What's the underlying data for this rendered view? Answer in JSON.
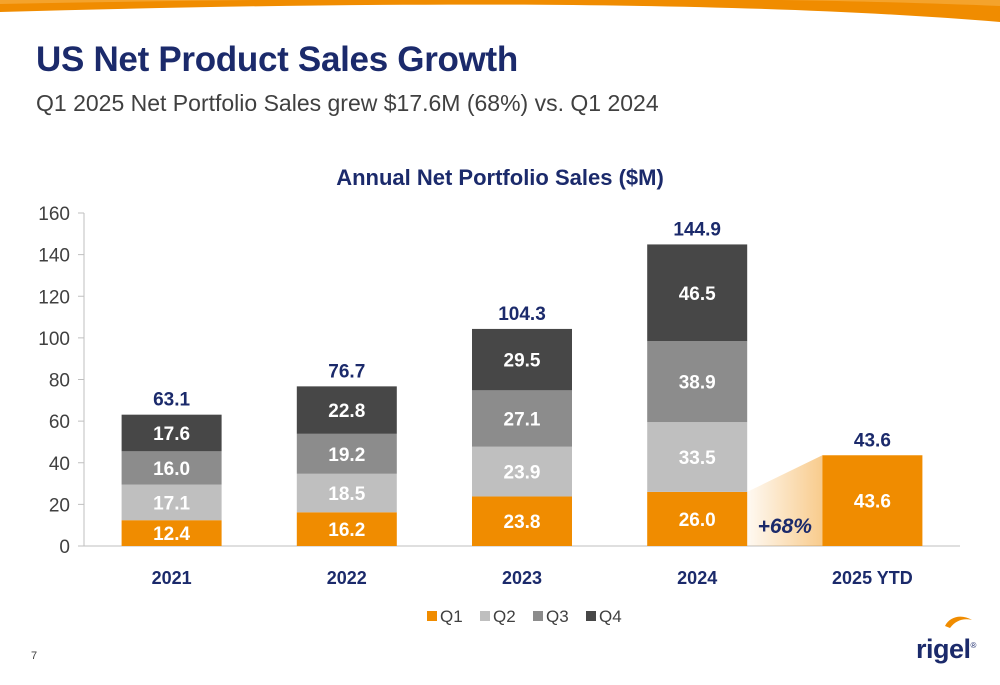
{
  "header": {
    "title": "US Net Product Sales Growth",
    "subtitle": "Q1 2025 Net Portfolio Sales grew $17.6M (68%) vs. Q1 2024"
  },
  "page_number": "7",
  "logo": {
    "text": "rigel",
    "mark": "®"
  },
  "colors": {
    "Q1": "#f08c00",
    "Q2": "#bfbfbf",
    "Q3": "#8c8c8c",
    "Q4": "#474747",
    "brand_navy": "#1b2a6b",
    "accent_orange": "#f08c00"
  },
  "chart_data": {
    "type": "bar",
    "stacked": true,
    "title": "Annual Net Portfolio Sales ($M)",
    "xlabel": "",
    "ylabel": "",
    "ylim": [
      0,
      160
    ],
    "yticks": [
      0,
      20,
      40,
      60,
      80,
      100,
      120,
      140,
      160
    ],
    "grid": false,
    "legend_position": "bottom",
    "categories": [
      "2021",
      "2022",
      "2023",
      "2024",
      "2025 YTD"
    ],
    "series": [
      {
        "name": "Q1",
        "values": [
          12.4,
          16.2,
          23.8,
          26.0,
          43.6
        ],
        "labels": [
          "12.4",
          "16.2",
          "23.8",
          "26.0",
          "43.6"
        ]
      },
      {
        "name": "Q2",
        "values": [
          17.1,
          18.5,
          23.9,
          33.5,
          null
        ],
        "labels": [
          "17.1",
          "18.5",
          "23.9",
          "33.5",
          ""
        ]
      },
      {
        "name": "Q3",
        "values": [
          16.0,
          19.2,
          27.1,
          38.9,
          null
        ],
        "labels": [
          "16.0",
          "19.2",
          "27.1",
          "38.9",
          ""
        ]
      },
      {
        "name": "Q4",
        "values": [
          17.6,
          22.8,
          29.5,
          46.5,
          null
        ],
        "labels": [
          "17.6",
          "22.8",
          "29.5",
          "46.5",
          ""
        ]
      }
    ],
    "totals": [
      63.1,
      76.7,
      104.3,
      144.9,
      43.6
    ],
    "total_labels": [
      "63.1",
      "76.7",
      "104.3",
      "144.9",
      "43.6"
    ],
    "annotations": [
      {
        "text": "+68%",
        "from": "2024",
        "to": "2025 YTD"
      }
    ]
  }
}
